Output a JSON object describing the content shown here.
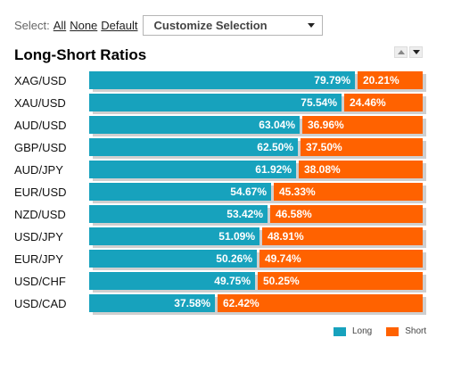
{
  "select_bar": {
    "label": "Select:",
    "all": "All",
    "none": "None",
    "default": "Default",
    "dropdown_value": "Customize Selection"
  },
  "title": "Long-Short Ratios",
  "colors": {
    "long": "#17a2bd",
    "short": "#ff6200"
  },
  "legend": {
    "long": "Long",
    "short": "Short"
  },
  "chart_data": {
    "type": "bar",
    "stacked": true,
    "orientation": "horizontal",
    "categories": [
      "XAG/USD",
      "XAU/USD",
      "AUD/USD",
      "GBP/USD",
      "AUD/JPY",
      "EUR/USD",
      "NZD/USD",
      "USD/JPY",
      "EUR/JPY",
      "USD/CHF",
      "USD/CAD"
    ],
    "series": [
      {
        "name": "Long",
        "values": [
          79.79,
          75.54,
          63.04,
          62.5,
          61.92,
          54.67,
          53.42,
          51.09,
          50.26,
          49.75,
          37.58
        ]
      },
      {
        "name": "Short",
        "values": [
          20.21,
          24.46,
          36.96,
          37.5,
          38.08,
          45.33,
          46.58,
          48.91,
          49.74,
          50.25,
          62.42
        ]
      }
    ],
    "labels": {
      "long": [
        "79.79%",
        "75.54%",
        "63.04%",
        "62.50%",
        "61.92%",
        "54.67%",
        "53.42%",
        "51.09%",
        "50.26%",
        "49.75%",
        "37.58%"
      ],
      "short": [
        "20.21%",
        "24.46%",
        "36.96%",
        "37.50%",
        "38.08%",
        "45.33%",
        "46.58%",
        "48.91%",
        "49.74%",
        "50.25%",
        "62.42%"
      ]
    },
    "title": "Long-Short Ratios",
    "legend_position": "bottom-right"
  }
}
